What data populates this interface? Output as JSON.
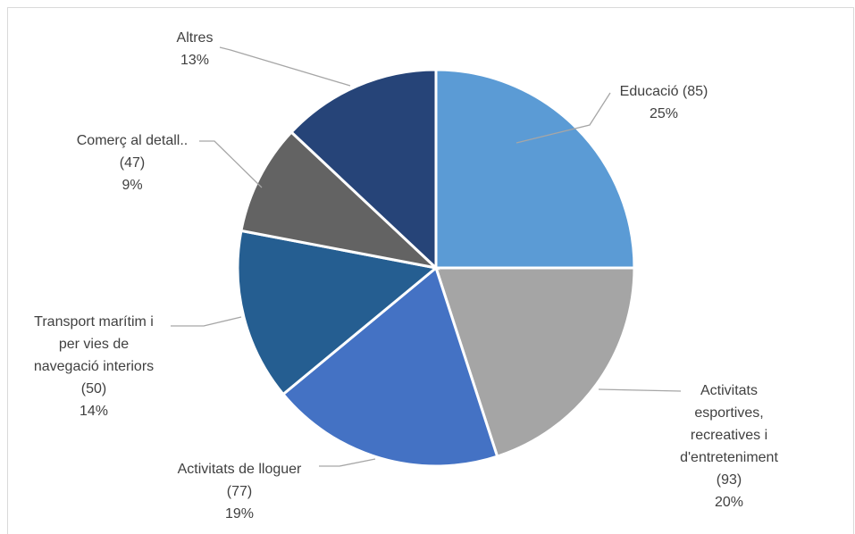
{
  "chart_data": {
    "type": "pie",
    "title": "",
    "start_angle_deg": 0,
    "direction": "clockwise",
    "slices": [
      {
        "label": "Educació (85)",
        "pct_label": "25%",
        "value": 25,
        "color": "#5b9bd5"
      },
      {
        "label": "Activitats esportives, recreatives i d'entreteniment (93)",
        "pct_label": "20%",
        "value": 20,
        "color": "#a5a5a5"
      },
      {
        "label": "Activitats de lloguer (77)",
        "pct_label": "19%",
        "value": 19,
        "color": "#4472c4"
      },
      {
        "label": "Transport marítim i per vies de navegació interiors (50)",
        "pct_label": "14%",
        "value": 14,
        "color": "#255e91"
      },
      {
        "label": "Comerç al detall.. (47)",
        "pct_label": "9%",
        "value": 9,
        "color": "#636363"
      },
      {
        "label": "Altres",
        "pct_label": "13%",
        "value": 13,
        "color": "#264478"
      }
    ],
    "label_lines": [
      [
        "Educació (85)",
        "25%"
      ],
      [
        "Activitats",
        "esportives,",
        "recreatives i",
        "d'entreteniment",
        "(93)",
        "20%"
      ],
      [
        "Activitats de lloguer",
        "(77)",
        "19%"
      ],
      [
        "Transport marítim i",
        "per vies de",
        "navegació interiors",
        "(50)",
        "14%"
      ],
      [
        "Comerç al detall..",
        "(47)",
        "9%"
      ],
      [
        "Altres",
        "13%"
      ]
    ]
  }
}
